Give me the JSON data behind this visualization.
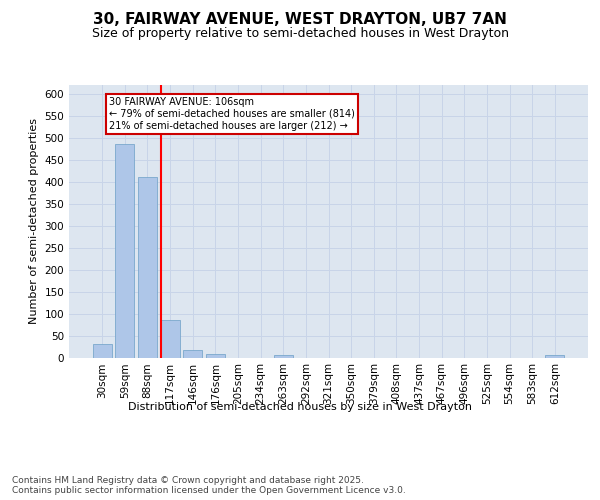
{
  "title_line1": "30, FAIRWAY AVENUE, WEST DRAYTON, UB7 7AN",
  "title_line2": "Size of property relative to semi-detached houses in West Drayton",
  "xlabel": "Distribution of semi-detached houses by size in West Drayton",
  "ylabel": "Number of semi-detached properties",
  "categories": [
    "30sqm",
    "59sqm",
    "88sqm",
    "117sqm",
    "146sqm",
    "176sqm",
    "205sqm",
    "234sqm",
    "263sqm",
    "292sqm",
    "321sqm",
    "350sqm",
    "379sqm",
    "408sqm",
    "437sqm",
    "467sqm",
    "496sqm",
    "525sqm",
    "554sqm",
    "583sqm",
    "612sqm"
  ],
  "values": [
    30,
    485,
    410,
    85,
    18,
    7,
    0,
    0,
    5,
    0,
    0,
    0,
    0,
    0,
    0,
    0,
    0,
    0,
    0,
    0,
    5
  ],
  "bar_color": "#aec6e8",
  "bar_edge_color": "#7aa8cc",
  "grid_color": "#c8d4e8",
  "background_color": "#dde6f0",
  "annotation_box_text": "30 FAIRWAY AVENUE: 106sqm\n← 79% of semi-detached houses are smaller (814)\n21% of semi-detached houses are larger (212) →",
  "annotation_box_color": "#cc0000",
  "property_line_x": 2.62,
  "ylim": [
    0,
    620
  ],
  "yticks": [
    0,
    50,
    100,
    150,
    200,
    250,
    300,
    350,
    400,
    450,
    500,
    550,
    600
  ],
  "footer_text": "Contains HM Land Registry data © Crown copyright and database right 2025.\nContains public sector information licensed under the Open Government Licence v3.0.",
  "title_fontsize": 11,
  "subtitle_fontsize": 9,
  "label_fontsize": 8,
  "tick_fontsize": 7.5,
  "footer_fontsize": 6.5,
  "ann_fontsize": 7
}
